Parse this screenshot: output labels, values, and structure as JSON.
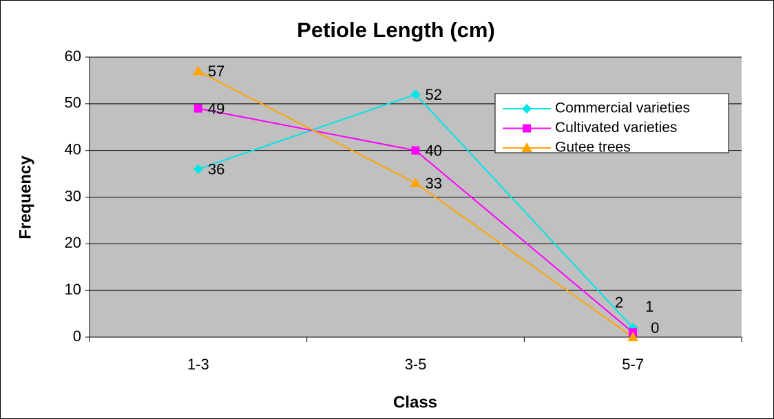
{
  "chart_data": {
    "type": "line",
    "title": "Petiole Length (cm)",
    "x_label": "Class",
    "y_label": "Frequency",
    "categories": [
      "1-3",
      "3-5",
      "5-7"
    ],
    "series": [
      {
        "name": "Commercial varieties",
        "color": "#00e5e5",
        "marker": "diamond",
        "values": [
          36,
          52,
          2
        ]
      },
      {
        "name": "Cultivated varieties",
        "color": "#ff00ff",
        "marker": "square",
        "values": [
          49,
          40,
          1
        ]
      },
      {
        "name": "Gutee trees",
        "color": "#ffa500",
        "marker": "triangle",
        "values": [
          57,
          33,
          0
        ]
      }
    ],
    "ylim": [
      0,
      60
    ],
    "yticks": [
      0,
      10,
      20,
      30,
      40,
      50,
      60
    ],
    "grid": true,
    "legend": "upper right"
  }
}
